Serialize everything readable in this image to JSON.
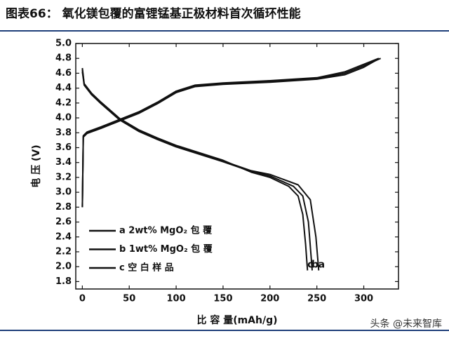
{
  "header": {
    "title": "图表66： 氧化镁包覆的富锂锰基正极材料首次循环性能"
  },
  "chart_data": {
    "type": "line",
    "x_label": "比 容 量(mAh/g)",
    "y_label": "电 压 (V)",
    "xlim": [
      -7,
      337
    ],
    "ylim": [
      1.7,
      5.0
    ],
    "xticks": [
      0,
      50,
      100,
      150,
      200,
      250,
      300
    ],
    "yticks": [
      1.8,
      {
        "value": 2,
        "label": "2.0"
      },
      2.2,
      2.4,
      2.6,
      2.8,
      {
        "value": 3,
        "label": "3.0"
      },
      3.2,
      3.4,
      3.6,
      3.8,
      {
        "value": 4,
        "label": "4.0"
      },
      4.2,
      4.4,
      4.6,
      4.8,
      {
        "value": 5,
        "label": "5.0"
      }
    ],
    "series": [
      {
        "name": "a 2wt% MgO₂ 包 覆",
        "end_label": "a",
        "color": "#111111",
        "x": [
          0,
          1,
          5,
          20,
          40,
          60,
          80,
          100,
          120,
          150,
          200,
          250,
          280,
          300,
          318,
          null,
          0,
          2,
          10,
          20,
          40,
          60,
          80,
          100,
          150,
          180,
          200,
          230,
          243,
          249,
          252
        ],
        "values": [
          2.8,
          3.75,
          3.8,
          3.87,
          3.97,
          4.07,
          4.2,
          4.35,
          4.43,
          4.46,
          4.49,
          4.53,
          4.6,
          4.7,
          4.8,
          null,
          4.65,
          4.45,
          4.32,
          4.2,
          3.98,
          3.83,
          3.72,
          3.62,
          3.42,
          3.29,
          3.24,
          3.1,
          2.9,
          2.4,
          1.95
        ]
      },
      {
        "name": "b 1wt% MgO₂ 包 覆",
        "end_label": "b",
        "color": "#111111",
        "x": [
          0,
          1,
          5,
          20,
          40,
          60,
          80,
          100,
          120,
          150,
          200,
          250,
          280,
          300,
          316,
          null,
          0,
          2,
          10,
          20,
          40,
          60,
          80,
          100,
          150,
          180,
          200,
          225,
          235,
          241,
          245
        ],
        "values": [
          2.8,
          3.76,
          3.81,
          3.88,
          3.98,
          4.08,
          4.21,
          4.36,
          4.44,
          4.47,
          4.5,
          4.54,
          4.62,
          4.72,
          4.8,
          null,
          4.62,
          4.44,
          4.31,
          4.19,
          3.97,
          3.82,
          3.71,
          3.61,
          3.41,
          3.28,
          3.22,
          3.08,
          2.95,
          2.6,
          1.95
        ]
      },
      {
        "name": "c 空 白   样 品",
        "end_label": "c",
        "color": "#111111",
        "x": [
          0,
          1,
          5,
          20,
          40,
          60,
          80,
          100,
          120,
          150,
          200,
          250,
          280,
          300,
          314,
          null,
          0,
          2,
          10,
          20,
          40,
          60,
          80,
          100,
          150,
          180,
          200,
          220,
          230,
          235,
          238,
          240
        ],
        "values": [
          2.8,
          3.74,
          3.79,
          3.86,
          3.96,
          4.06,
          4.19,
          4.34,
          4.42,
          4.45,
          4.48,
          4.52,
          4.58,
          4.68,
          4.78,
          null,
          4.67,
          4.46,
          4.33,
          4.21,
          3.99,
          3.84,
          3.73,
          3.63,
          3.43,
          3.27,
          3.2,
          3.08,
          2.95,
          2.7,
          2.3,
          1.95
        ]
      }
    ]
  },
  "watermark": "头条 @未来智库"
}
